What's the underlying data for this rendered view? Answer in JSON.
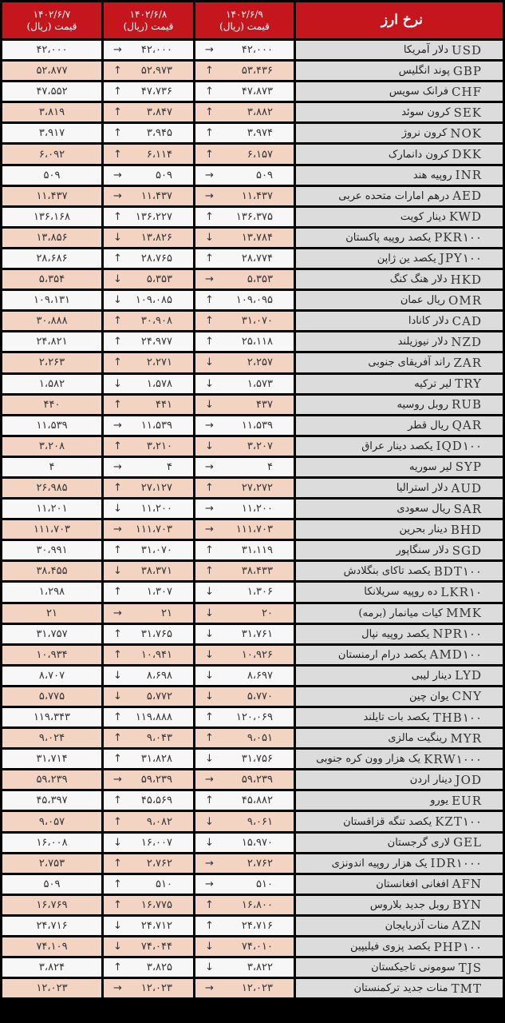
{
  "header": {
    "col_title": "نرخ ارز",
    "dates": [
      "۱۴۰۲/۶/۷",
      "۱۴۰۲/۶/۸",
      "۱۴۰۲/۶/۹"
    ],
    "price_label": "قیمت (ریال)"
  },
  "colors": {
    "header": "#c4161c",
    "row_alt": "#f3d3c2",
    "row": "#f7f7f7",
    "name_cell": "#dcdcdc"
  },
  "rows": [
    {
      "code": "USD",
      "name": "دلار آمریکا",
      "d7": "۴۲،۰۰۰",
      "a8": "→",
      "d8": "۴۲،۰۰۰",
      "a9": "→",
      "d9": "۴۲،۰۰۰"
    },
    {
      "code": "GBP",
      "name": "پوند انگلیس",
      "d7": "۵۲،۸۷۷",
      "a8": "↑",
      "d8": "۵۲،۹۷۳",
      "a9": "↑",
      "d9": "۵۳،۴۳۶"
    },
    {
      "code": "CHF",
      "name": "فرانک سویس",
      "d7": "۴۷،۵۵۲",
      "a8": "↑",
      "d8": "۴۷،۷۳۶",
      "a9": "↑",
      "d9": "۴۷،۸۷۳"
    },
    {
      "code": "SEK",
      "name": "کرون سوئد",
      "d7": "۳،۸۱۹",
      "a8": "↑",
      "d8": "۳،۸۴۷",
      "a9": "↑",
      "d9": "۳،۸۸۲"
    },
    {
      "code": "NOK",
      "name": "کرون نروژ",
      "d7": "۳،۹۱۷",
      "a8": "↑",
      "d8": "۳،۹۴۵",
      "a9": "↑",
      "d9": "۳،۹۷۴"
    },
    {
      "code": "DKK",
      "name": "کرون دانمارک",
      "d7": "۶،۰۹۲",
      "a8": "↑",
      "d8": "۶،۱۱۴",
      "a9": "↑",
      "d9": "۶،۱۵۷"
    },
    {
      "code": "INR",
      "name": "روپیه هند",
      "d7": "۵۰۹",
      "a8": "→",
      "d8": "۵۰۹",
      "a9": "→",
      "d9": "۵۰۹"
    },
    {
      "code": "AED",
      "name": "درهم امارات متحده عربی",
      "d7": "۱۱،۴۳۷",
      "a8": "→",
      "d8": "۱۱،۴۳۷",
      "a9": "→",
      "d9": "۱۱،۴۳۷"
    },
    {
      "code": "KWD",
      "name": "دینار کویت",
      "d7": "۱۳۶،۱۶۸",
      "a8": "↑",
      "d8": "۱۳۶،۲۲۷",
      "a9": "↑",
      "d9": "۱۳۶،۳۷۵"
    },
    {
      "code": "PKR۱۰۰",
      "name": "یکصد روپیه پاکستان",
      "d7": "۱۳،۸۵۶",
      "a8": "↓",
      "d8": "۱۳،۸۲۶",
      "a9": "↓",
      "d9": "۱۳،۷۸۴"
    },
    {
      "code": "JPY۱۰۰",
      "name": "یکصد ین ژاپن",
      "d7": "۲۸،۶۸۶",
      "a8": "↑",
      "d8": "۲۸،۷۶۵",
      "a9": "↑",
      "d9": "۲۸،۷۷۴"
    },
    {
      "code": "HKD",
      "name": "دلار هنگ کنگ",
      "d7": "۵،۳۵۴",
      "a8": "↓",
      "d8": "۵،۳۵۳",
      "a9": "→",
      "d9": "۵،۳۵۳"
    },
    {
      "code": "OMR",
      "name": "ریال عمان",
      "d7": "۱۰۹،۱۳۱",
      "a8": "↓",
      "d8": "۱۰۹،۰۸۵",
      "a9": "↑",
      "d9": "۱۰۹،۰۹۵"
    },
    {
      "code": "CAD",
      "name": "دلار کانادا",
      "d7": "۳۰،۸۸۸",
      "a8": "↑",
      "d8": "۳۰،۹۰۸",
      "a9": "↑",
      "d9": "۳۱،۰۷۰"
    },
    {
      "code": "NZD",
      "name": "دلار نیوزیلند",
      "d7": "۲۴،۸۲۱",
      "a8": "↑",
      "d8": "۲۴،۹۷۷",
      "a9": "↑",
      "d9": "۲۵،۱۱۸"
    },
    {
      "code": "ZAR",
      "name": "راند آفریقای جنوبی",
      "d7": "۲،۲۶۳",
      "a8": "↑",
      "d8": "۲،۲۷۱",
      "a9": "↓",
      "d9": "۲،۲۵۷"
    },
    {
      "code": "TRY",
      "name": "لیر ترکیه",
      "d7": "۱،۵۸۲",
      "a8": "↓",
      "d8": "۱،۵۷۸",
      "a9": "↓",
      "d9": "۱،۵۷۳"
    },
    {
      "code": "RUB",
      "name": "روبل روسیه",
      "d7": "۴۴۰",
      "a8": "↑",
      "d8": "۴۴۱",
      "a9": "↓",
      "d9": "۴۳۷"
    },
    {
      "code": "QAR",
      "name": "ریال قطر",
      "d7": "۱۱،۵۳۹",
      "a8": "→",
      "d8": "۱۱،۵۳۹",
      "a9": "→",
      "d9": "۱۱،۵۳۹"
    },
    {
      "code": "IQD۱۰۰",
      "name": "یکصد دینار عراق",
      "d7": "۳،۲۰۸",
      "a8": "↑",
      "d8": "۳،۲۱۰",
      "a9": "↓",
      "d9": "۳،۲۰۷"
    },
    {
      "code": "SYP",
      "name": "لیر سوریه",
      "d7": "۴",
      "a8": "→",
      "d8": "۴",
      "a9": "→",
      "d9": "۴"
    },
    {
      "code": "AUD",
      "name": "دلار استرالیا",
      "d7": "۲۶،۹۸۵",
      "a8": "↑",
      "d8": "۲۷،۱۲۷",
      "a9": "↑",
      "d9": "۲۷،۲۷۲"
    },
    {
      "code": "SAR",
      "name": "ریال سعودی",
      "d7": "۱۱،۲۰۱",
      "a8": "↓",
      "d8": "۱۱،۲۰۰",
      "a9": "→",
      "d9": "۱۱،۲۰۰"
    },
    {
      "code": "BHD",
      "name": "دینار بحرین",
      "d7": "۱۱۱،۷۰۳",
      "a8": "→",
      "d8": "۱۱۱،۷۰۳",
      "a9": "→",
      "d9": "۱۱۱،۷۰۳"
    },
    {
      "code": "SGD",
      "name": "دلار سنگاپور",
      "d7": "۳۰،۹۹۱",
      "a8": "↑",
      "d8": "۳۱،۰۷۰",
      "a9": "↑",
      "d9": "۳۱،۱۱۹"
    },
    {
      "code": "BDT۱۰۰",
      "name": "یکصد تاکای بنگلادش",
      "d7": "۳۸،۴۵۵",
      "a8": "↓",
      "d8": "۳۸،۳۷۱",
      "a9": "↑",
      "d9": "۳۸،۴۳۳"
    },
    {
      "code": "LKR۱۰",
      "name": "ده روپیه سریلانکا",
      "d7": "۱،۲۹۸",
      "a8": "↑",
      "d8": "۱،۳۰۷",
      "a9": "↓",
      "d9": "۱،۳۰۶"
    },
    {
      "code": "MMK",
      "name": "کیات میانمار (برمه)",
      "d7": "۲۱",
      "a8": "→",
      "d8": "۲۱",
      "a9": "↓",
      "d9": "۲۰"
    },
    {
      "code": "NPR۱۰۰",
      "name": "یکصد روپیه نپال",
      "d7": "۳۱،۷۵۷",
      "a8": "↑",
      "d8": "۳۱،۷۶۵",
      "a9": "↓",
      "d9": "۳۱،۷۶۱"
    },
    {
      "code": "AMD۱۰۰",
      "name": "یکصد درام ارمنستان",
      "d7": "۱۰،۹۳۴",
      "a8": "↑",
      "d8": "۱۰،۹۴۱",
      "a9": "↓",
      "d9": "۱۰،۹۲۶"
    },
    {
      "code": "LYD",
      "name": "دینار لیبی",
      "d7": "۸،۷۰۷",
      "a8": "↓",
      "d8": "۸،۶۹۸",
      "a9": "↓",
      "d9": "۸،۶۹۷"
    },
    {
      "code": "CNY",
      "name": "یوان چین",
      "d7": "۵،۷۷۵",
      "a8": "↓",
      "d8": "۵،۷۷۲",
      "a9": "↓",
      "d9": "۵،۷۷۰"
    },
    {
      "code": "THB۱۰۰",
      "name": "یکصد بات تایلند",
      "d7": "۱۱۹،۳۴۳",
      "a8": "↑",
      "d8": "۱۱۹،۸۸۸",
      "a9": "↑",
      "d9": "۱۲۰،۰۶۹"
    },
    {
      "code": "MYR",
      "name": "رینگیت مالزی",
      "d7": "۹،۰۲۴",
      "a8": "↑",
      "d8": "۹،۰۴۳",
      "a9": "↑",
      "d9": "۹،۰۵۱"
    },
    {
      "code": "KRW۱۰۰۰",
      "name": "یک هزار وون کره جنوبی",
      "d7": "۳۱،۷۱۴",
      "a8": "↑",
      "d8": "۳۱،۸۲۸",
      "a9": "↓",
      "d9": "۳۱،۷۵۶"
    },
    {
      "code": "JOD",
      "name": "دینار اردن",
      "d7": "۵۹،۲۳۹",
      "a8": "→",
      "d8": "۵۹،۲۳۹",
      "a9": "→",
      "d9": "۵۹،۲۳۹"
    },
    {
      "code": "EUR",
      "name": "یورو",
      "d7": "۴۵،۳۹۷",
      "a8": "↑",
      "d8": "۴۵،۵۶۹",
      "a9": "↑",
      "d9": "۴۵،۸۸۲"
    },
    {
      "code": "KZT۱۰۰",
      "name": "یکصد تنگه قزاقستان",
      "d7": "۹،۰۵۷",
      "a8": "↑",
      "d8": "۹،۰۸۲",
      "a9": "↓",
      "d9": "۹،۰۶۱"
    },
    {
      "code": "GEL",
      "name": "لاری گرجستان",
      "d7": "۱۶،۰۰۸",
      "a8": "↓",
      "d8": "۱۶،۰۰۷",
      "a9": "↓",
      "d9": "۱۵،۹۷۰"
    },
    {
      "code": "IDR۱۰۰۰",
      "name": "یک هزار روپیه اندونزی",
      "d7": "۲،۷۵۳",
      "a8": "↑",
      "d8": "۲،۷۶۲",
      "a9": "→",
      "d9": "۲،۷۶۲"
    },
    {
      "code": "AFN",
      "name": "افغانی افغانستان",
      "d7": "۵۰۹",
      "a8": "↑",
      "d8": "۵۱۰",
      "a9": "→",
      "d9": "۵۱۰"
    },
    {
      "code": "BYN",
      "name": "روبل جدید بلاروس",
      "d7": "۱۶،۷۶۹",
      "a8": "↑",
      "d8": "۱۶،۷۷۵",
      "a9": "↑",
      "d9": "۱۶،۸۰۰"
    },
    {
      "code": "AZN",
      "name": "منات آذربایجان",
      "d7": "۲۴،۷۱۶",
      "a8": "↓",
      "d8": "۲۴،۷۱۲",
      "a9": "↑",
      "d9": "۲۴،۷۱۶"
    },
    {
      "code": "PHP۱۰۰",
      "name": "یکصد پزوی فیلیپین",
      "d7": "۷۴،۱۰۹",
      "a8": "↓",
      "d8": "۷۴،۰۴۴",
      "a9": "↓",
      "d9": "۷۴،۰۱۰"
    },
    {
      "code": "TJS",
      "name": "سومونی تاجیکستان",
      "d7": "۳،۸۲۴",
      "a8": "↑",
      "d8": "۳،۸۲۵",
      "a9": "↓",
      "d9": "۳،۸۲۲"
    },
    {
      "code": "TMT",
      "name": "منات جدید ترکمنستان",
      "d7": "۱۲،۰۲۳",
      "a8": "→",
      "d8": "۱۲،۰۲۳",
      "a9": "→",
      "d9": "۱۲،۰۲۳"
    }
  ]
}
